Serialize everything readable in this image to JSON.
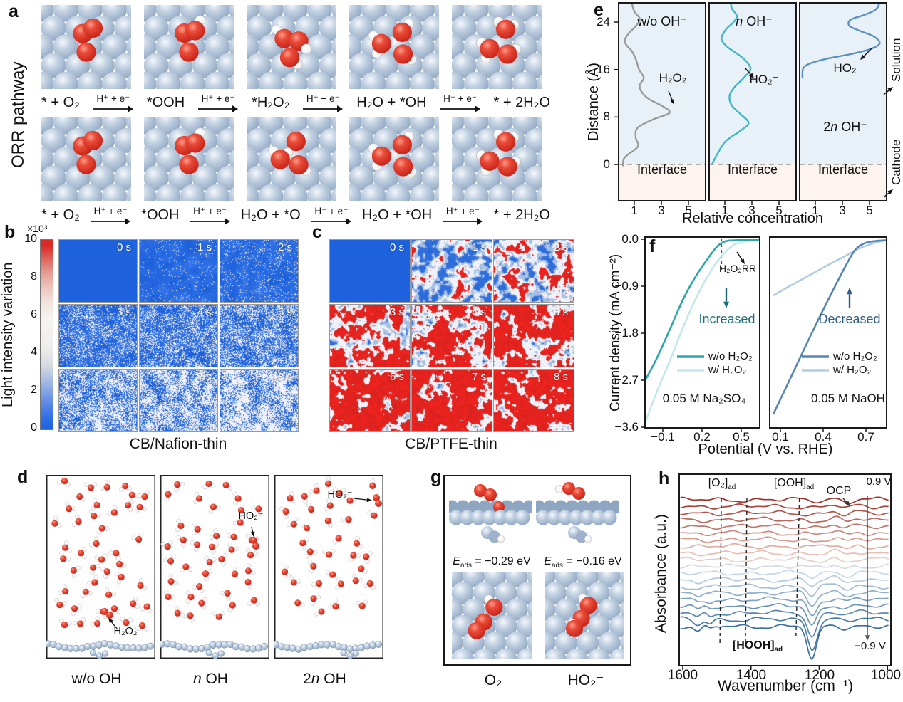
{
  "panel_a": {
    "letter": "a",
    "side_label": "ORR pathway",
    "arrow_label": "H⁺ + e⁻",
    "eq1": [
      "* + O₂",
      "*OOH",
      "*H₂O₂",
      "H₂O + *OH",
      "* + 2H₂O"
    ],
    "eq2": [
      "* + O₂",
      "*OOH",
      "H₂O + *O",
      "H₂O + *OH",
      "* + 2H₂O"
    ],
    "row1_motifs": [
      "O2",
      "OOH",
      "H2O2",
      "H2O_OH",
      "2H2O"
    ],
    "row2_motifs": [
      "O2",
      "OOH",
      "H2O_O",
      "H2O_OH",
      "2H2O"
    ]
  },
  "panel_b": {
    "letter": "b",
    "caption": "CB/Nafion-thin",
    "times": [
      "0 s",
      "1 s",
      "2 s",
      "3 s",
      "4 s",
      "5 s",
      "6 s",
      "7 s",
      "8 s"
    ],
    "colorbar": {
      "exp_label": "×10³",
      "ticks": [
        "10",
        "8",
        "6",
        "4",
        "2",
        "0"
      ],
      "axis_label": "Light intensity variation",
      "low_color": "#1e63e0",
      "mid_color": "#f4f2ef",
      "high_color": "#d92a26"
    }
  },
  "panel_c": {
    "letter": "c",
    "caption": "CB/PTFE-thin",
    "times": [
      "0 s",
      "1 s",
      "2 s",
      "3 s",
      "4 s",
      "5 s",
      "6 s",
      "7 s",
      "8 s"
    ]
  },
  "panel_d": {
    "letter": "d",
    "boxes": [
      {
        "caption_pre": "w/o",
        "caption_em": "",
        "caption_post": " OH⁻",
        "annotation": "H₂O₂"
      },
      {
        "caption_pre": "",
        "caption_em": "n",
        "caption_post": " OH⁻",
        "annotation": "HO₂⁻"
      },
      {
        "caption_pre": "2",
        "caption_em": "n",
        "caption_post": " OH⁻",
        "annotation": "HO₂⁻"
      }
    ]
  },
  "panel_g": {
    "letter": "g",
    "left": {
      "e_em": "E",
      "e_sub": "ads",
      "e_rest": " = −0.29 eV",
      "caption": "O₂"
    },
    "right": {
      "e_em": "E",
      "e_sub": "ads",
      "e_rest": " = −0.16 eV",
      "caption": "HO₂⁻"
    }
  },
  "chart_data": [
    {
      "id": "e",
      "panel_letter": "e",
      "type": "line",
      "ylabel": "Distance (Å)",
      "xlabel": "Relative concentration",
      "yticks": [
        "24",
        "16",
        "8",
        "0"
      ],
      "xticks": [
        "1",
        "3",
        "5"
      ],
      "ylim": [
        -6.2,
        27.4
      ],
      "xlim": [
        0,
        6.4
      ],
      "interface_label": "Interface",
      "solution_label": "Solution",
      "cathode_label": "Cathode",
      "solution_bg": "#e9f1f8",
      "interface_bg": "#fdf3ef",
      "subpanels": [
        {
          "title_pre": "w/o",
          "title_em": "",
          "title_post": " OH⁻",
          "annotation": "H₂O₂",
          "color": "#9b9b9b",
          "points": [
            [
              0.15,
              -0.3
            ],
            [
              0.3,
              1.2
            ],
            [
              1.25,
              3
            ],
            [
              1.1,
              4.6
            ],
            [
              1.25,
              6.2
            ],
            [
              2.4,
              7.6
            ],
            [
              3.6,
              8.7
            ],
            [
              3.1,
              9.8
            ],
            [
              2.1,
              11
            ],
            [
              1.55,
              12.2
            ],
            [
              1.4,
              13.4
            ],
            [
              1.7,
              14.6
            ],
            [
              1.35,
              16
            ],
            [
              1.15,
              17.5
            ],
            [
              0.85,
              19
            ],
            [
              0.3,
              20.6
            ],
            [
              0.55,
              22
            ],
            [
              1.15,
              23.4
            ],
            [
              1.4,
              24.6
            ],
            [
              1.0,
              25.8
            ],
            [
              0.8,
              27.4
            ]
          ]
        },
        {
          "title_pre": "",
          "title_em": "n",
          "title_post": " OH⁻",
          "annotation": "HO₂⁻",
          "color": "#43b5c2",
          "points": [
            [
              0.05,
              0
            ],
            [
              0.5,
              2
            ],
            [
              1.1,
              4
            ],
            [
              2.1,
              5.6
            ],
            [
              2.75,
              7
            ],
            [
              2.1,
              8.6
            ],
            [
              1.5,
              10
            ],
            [
              1.35,
              11.6
            ],
            [
              1.7,
              13
            ],
            [
              2.4,
              14.6
            ],
            [
              2.9,
              16.2
            ],
            [
              2.3,
              18
            ],
            [
              1.2,
              19.8
            ],
            [
              0.75,
              21.2
            ],
            [
              1.1,
              22.8
            ],
            [
              1.65,
              24
            ],
            [
              1.9,
              25
            ],
            [
              1.55,
              26.2
            ],
            [
              1.4,
              27.4
            ]
          ]
        },
        {
          "title_pre": "",
          "title_em": "",
          "title_post": "",
          "annotation": "HO₂⁻",
          "label2_pre": "2",
          "label2_em": "n",
          "label2_post": " OH⁻",
          "color": "#5c90c2",
          "points": [
            [
              0.05,
              14.5
            ],
            [
              0.1,
              16.2
            ],
            [
              0.6,
              17
            ],
            [
              1.8,
              17.8
            ],
            [
              3.6,
              18.6
            ],
            [
              5.0,
              19.4
            ],
            [
              5.75,
              20.4
            ],
            [
              5.3,
              21.6
            ],
            [
              4.2,
              22.6
            ],
            [
              3.5,
              23.4
            ],
            [
              3.6,
              24.4
            ],
            [
              4.6,
              25.2
            ],
            [
              5.4,
              26
            ],
            [
              5.7,
              27
            ],
            [
              5.6,
              27.5
            ]
          ]
        }
      ]
    },
    {
      "id": "f_left",
      "panel_letter": "f",
      "type": "line",
      "ylabel": "Current density (mA cm⁻²)",
      "xlabel": "Potential (V vs. RHE)",
      "yticks": [
        "0.0",
        "−0.9",
        "−1.8",
        "−2.7",
        "−3.6"
      ],
      "xticks": [
        "−0.1",
        "0.2",
        "0.5"
      ],
      "xlim": [
        -0.236,
        0.642
      ],
      "ylim": [
        -3.66,
        0.04
      ],
      "caption": "0.05 M Na₂SO₄",
      "direction_label": "Increased",
      "direction_color": "#1d6e79",
      "annotation": "H₂O₂RR",
      "dashed_x": 0.35,
      "series": [
        {
          "name": "w/o H₂O₂",
          "color": "#2fa6ad",
          "points": [
            [
              -0.235,
              -2.7
            ],
            [
              -0.15,
              -2.3
            ],
            [
              -0.05,
              -1.75
            ],
            [
              0.05,
              -1.18
            ],
            [
              0.15,
              -0.72
            ],
            [
              0.25,
              -0.35
            ],
            [
              0.32,
              -0.13
            ],
            [
              0.38,
              -0.04
            ],
            [
              0.45,
              -0.02
            ],
            [
              0.64,
              -0.01
            ]
          ]
        },
        {
          "name": "w/ H₂O₂",
          "color": "#c4e8ea",
          "points": [
            [
              -0.235,
              -3.5
            ],
            [
              -0.15,
              -2.95
            ],
            [
              -0.05,
              -2.35
            ],
            [
              0.05,
              -1.72
            ],
            [
              0.15,
              -1.15
            ],
            [
              0.25,
              -0.68
            ],
            [
              0.35,
              -0.32
            ],
            [
              0.45,
              -0.1
            ],
            [
              0.55,
              -0.03
            ],
            [
              0.64,
              -0.01
            ]
          ]
        }
      ]
    },
    {
      "id": "f_right",
      "type": "line",
      "xticks": [
        "0.1",
        "0.4",
        "0.7"
      ],
      "xlim": [
        0.025,
        0.845
      ],
      "ylim": [
        -3.66,
        0.04
      ],
      "caption": "0.05 M NaOH",
      "direction_label": "Decreased",
      "direction_color": "#2f5d85",
      "series": [
        {
          "name": "w/o H₂O₂",
          "color": "#5585b5",
          "points": [
            [
              0.05,
              -3.35
            ],
            [
              0.15,
              -2.78
            ],
            [
              0.25,
              -2.2
            ],
            [
              0.35,
              -1.63
            ],
            [
              0.45,
              -1.08
            ],
            [
              0.55,
              -0.55
            ],
            [
              0.62,
              -0.22
            ],
            [
              0.68,
              -0.09
            ],
            [
              0.75,
              -0.04
            ],
            [
              0.84,
              -0.02
            ]
          ]
        },
        {
          "name": "w/ H₂O₂",
          "color": "#b3cce3",
          "points": [
            [
              0.05,
              -1.08
            ],
            [
              0.15,
              -0.92
            ],
            [
              0.25,
              -0.77
            ],
            [
              0.35,
              -0.62
            ],
            [
              0.45,
              -0.47
            ],
            [
              0.55,
              -0.33
            ],
            [
              0.65,
              -0.18
            ],
            [
              0.75,
              -0.08
            ],
            [
              0.84,
              -0.02
            ]
          ]
        }
      ]
    },
    {
      "id": "h",
      "panel_letter": "h",
      "type": "line",
      "ylabel": "Absorbance (a.u.)",
      "xlabel": "Wavenumber (cm⁻¹)",
      "xticks": [
        "1600",
        "1400",
        "1200",
        "1000"
      ],
      "xlim": [
        1600,
        1000
      ],
      "n_curves": 20,
      "label_o2_main": "[O₂]",
      "label_o2_sub": "ad",
      "label_ooh_main": "[OOH]",
      "label_ooh_sub": "ad",
      "label_hooh_main": "[HOOH]",
      "label_hooh_sub": "ad",
      "label_ocp": "OCP",
      "label_v_top": "0.9 V",
      "label_v_bottom": "−0.9 V",
      "dashed_wavenumbers": [
        1487,
        1412,
        1258
      ],
      "dip_center": 1221,
      "color_top": "#9c332b",
      "color_mid_warm": "#eec9bc",
      "color_mid_cool": "#cfdfec",
      "color_bottom": "#3a6f9f"
    }
  ]
}
